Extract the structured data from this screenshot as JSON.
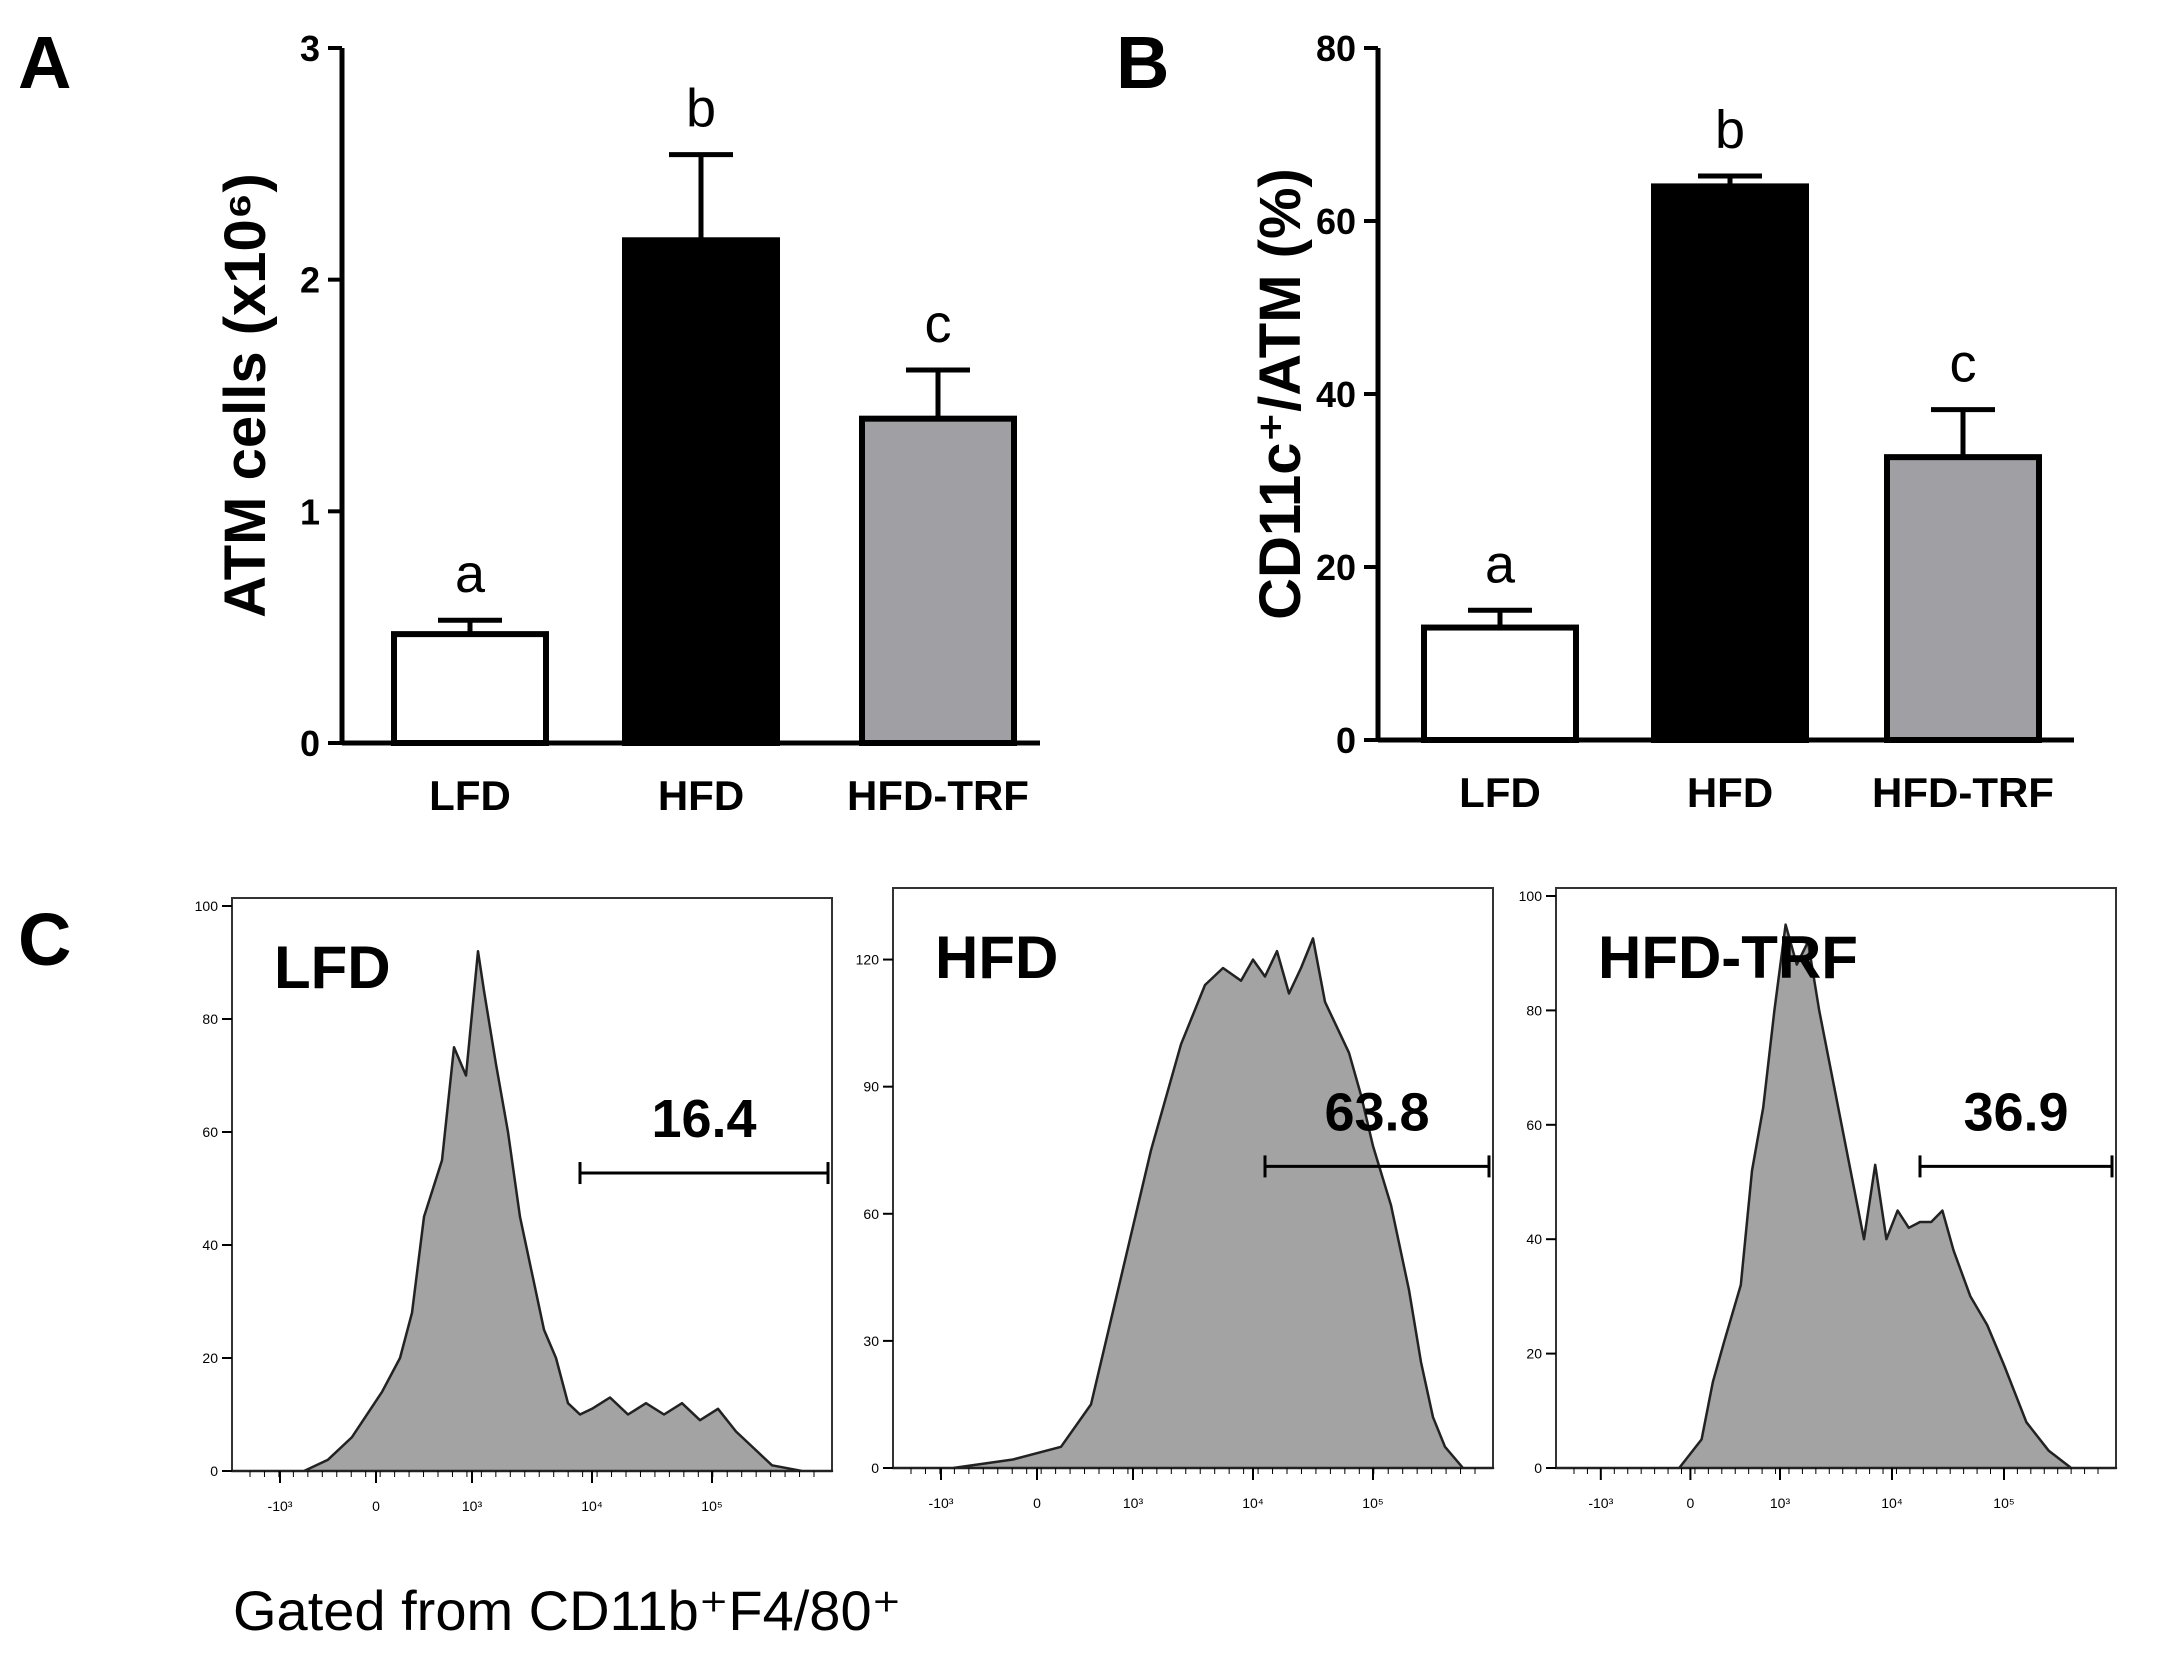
{
  "chart_data": [
    {
      "type": "bar",
      "panel": "A",
      "categories": [
        "LFD",
        "HFD",
        "HFD-TRF"
      ],
      "values": [
        0.47,
        2.17,
        1.4
      ],
      "errors": [
        0.06,
        0.37,
        0.21
      ],
      "significance": [
        "a",
        "b",
        "c"
      ],
      "fills": [
        "#ffffff",
        "#000000",
        "#a0a0a4"
      ],
      "ylabel": "ATM cells (x10⁶)",
      "ylim": [
        0,
        3
      ],
      "yticks": [
        "0",
        "1",
        "2",
        "3"
      ],
      "grid": false
    },
    {
      "type": "bar",
      "panel": "B",
      "categories": [
        "LFD",
        "HFD",
        "HFD-TRF"
      ],
      "values": [
        13,
        64,
        32.7
      ],
      "errors": [
        2,
        1.2,
        5.5
      ],
      "significance": [
        "a",
        "b",
        "c"
      ],
      "fills": [
        "#ffffff",
        "#000000",
        "#a0a0a4"
      ],
      "ylabel": "CD11c⁺/ATM  (%)",
      "ylim": [
        0,
        80
      ],
      "yticks": [
        "0",
        "20",
        "40",
        "60",
        "80"
      ],
      "grid": false
    },
    {
      "type": "area",
      "panel": "C",
      "subtype": "flow-cytometry-histogram",
      "xaxis_ticks": [
        "-10³",
        "0",
        "10³",
        "10⁴",
        "10⁵"
      ],
      "histograms": [
        {
          "name": "LFD",
          "gate_value": "16.4",
          "gate_range": [
            0.58,
            1.0
          ],
          "ymax": 100,
          "yticks": [
            "0",
            "20",
            "40",
            "60",
            "80",
            "100"
          ],
          "x": [
            0.0,
            0.12,
            0.16,
            0.2,
            0.25,
            0.28,
            0.3,
            0.32,
            0.35,
            0.37,
            0.39,
            0.41,
            0.42,
            0.44,
            0.46,
            0.48,
            0.5,
            0.52,
            0.54,
            0.56,
            0.58,
            0.6,
            0.63,
            0.66,
            0.69,
            0.72,
            0.75,
            0.78,
            0.81,
            0.84,
            0.87,
            0.9,
            0.95,
            1.0
          ],
          "y": [
            0,
            0,
            2,
            6,
            14,
            20,
            28,
            45,
            55,
            75,
            70,
            92,
            85,
            72,
            60,
            45,
            35,
            25,
            20,
            12,
            10,
            11,
            13,
            10,
            12,
            10,
            12,
            9,
            11,
            7,
            4,
            1,
            0,
            0
          ]
        },
        {
          "name": "HFD",
          "gate_value": "63.8",
          "gate_range": [
            0.62,
            1.0
          ],
          "ymax": 135,
          "yticks": [
            "0",
            "30",
            "60",
            "90",
            "120"
          ],
          "x": [
            0.0,
            0.1,
            0.2,
            0.28,
            0.33,
            0.38,
            0.43,
            0.48,
            0.52,
            0.55,
            0.58,
            0.6,
            0.62,
            0.64,
            0.66,
            0.68,
            0.7,
            0.72,
            0.74,
            0.76,
            0.78,
            0.8,
            0.83,
            0.86,
            0.88,
            0.9,
            0.92,
            0.95,
            1.0
          ],
          "y": [
            0,
            0,
            2,
            5,
            15,
            45,
            75,
            100,
            114,
            118,
            115,
            120,
            116,
            122,
            112,
            118,
            125,
            110,
            104,
            98,
            88,
            76,
            62,
            42,
            25,
            12,
            5,
            0,
            0
          ]
        },
        {
          "name": "HFD-TRF",
          "gate_value": "36.9",
          "gate_range": [
            0.65,
            1.0
          ],
          "ymax": 100,
          "yticks": [
            "0",
            "20",
            "40",
            "60",
            "80",
            "100"
          ],
          "x": [
            0.0,
            0.1,
            0.22,
            0.26,
            0.28,
            0.3,
            0.33,
            0.35,
            0.37,
            0.39,
            0.41,
            0.43,
            0.45,
            0.47,
            0.49,
            0.51,
            0.53,
            0.55,
            0.57,
            0.59,
            0.61,
            0.63,
            0.65,
            0.67,
            0.69,
            0.71,
            0.74,
            0.77,
            0.8,
            0.84,
            0.88,
            0.92,
            1.0
          ],
          "y": [
            0,
            0,
            0,
            5,
            15,
            22,
            32,
            52,
            63,
            80,
            95,
            88,
            92,
            80,
            70,
            60,
            50,
            40,
            53,
            40,
            45,
            42,
            43,
            43,
            45,
            38,
            30,
            25,
            18,
            8,
            3,
            0,
            0
          ]
        }
      ]
    }
  ],
  "figure": {
    "panel_labels": [
      "A",
      "B",
      "C"
    ],
    "gating_note": "Gated from CD11b⁺F4/80⁺"
  }
}
